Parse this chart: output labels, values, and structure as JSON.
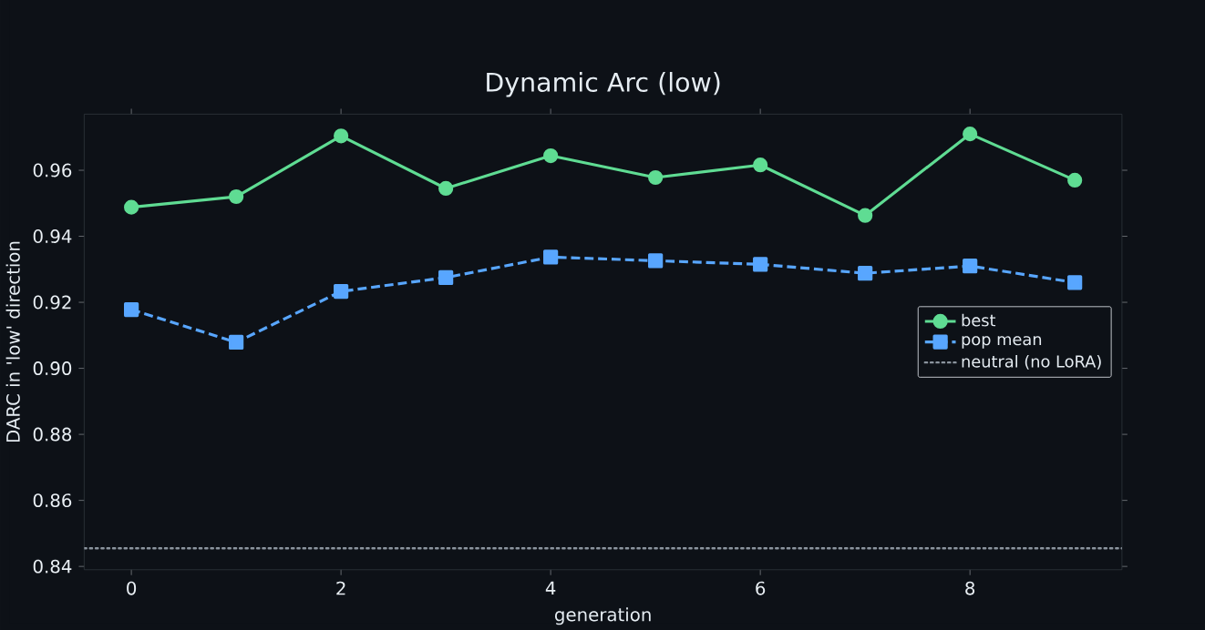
{
  "chart_data": {
    "type": "line",
    "title": "Dynamic Arc (low)",
    "xlabel": "generation",
    "ylabel": "DARC in 'low' direction",
    "x": [
      0,
      1,
      2,
      3,
      4,
      5,
      6,
      7,
      8,
      9
    ],
    "series": [
      {
        "name": "best",
        "color": "#5fdc93",
        "marker": "circle",
        "line_style": "solid",
        "values": [
          0.9488,
          0.952,
          0.9704,
          0.9545,
          0.9644,
          0.9578,
          0.9616,
          0.9463,
          0.971,
          0.957
        ]
      },
      {
        "name": "pop mean",
        "color": "#58a6ff",
        "marker": "square",
        "line_style": "dashed",
        "values": [
          0.9178,
          0.9079,
          0.9233,
          0.9275,
          0.9337,
          0.9326,
          0.9315,
          0.9288,
          0.931,
          0.926
        ]
      }
    ],
    "ref_lines": [
      {
        "axis": "y",
        "value": 0.8455,
        "label": "neutral (no LoRA)",
        "color": "#8b949e",
        "line_style": "dotted"
      }
    ],
    "xlim": [
      -0.45,
      9.45
    ],
    "ylim": [
      0.839,
      0.977
    ],
    "xticks": [
      0,
      2,
      4,
      6,
      8
    ],
    "yticks": [
      {
        "value": 0.84,
        "label": "0.84"
      },
      {
        "value": 0.86,
        "label": "0.86"
      },
      {
        "value": 0.88,
        "label": "0.88"
      },
      {
        "value": 0.9,
        "label": "0.90"
      },
      {
        "value": 0.92,
        "label": "0.92"
      },
      {
        "value": 0.94,
        "label": "0.94"
      },
      {
        "value": 0.96,
        "label": "0.96"
      }
    ],
    "grid": false,
    "legend": "right"
  }
}
